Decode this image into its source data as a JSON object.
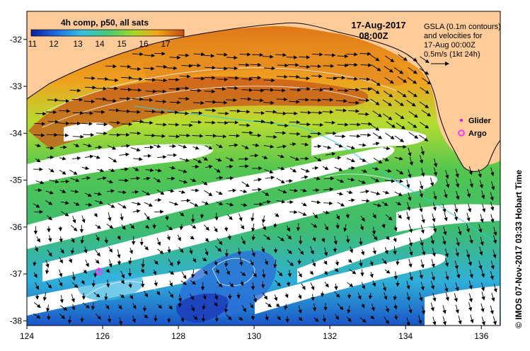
{
  "colorbar": {
    "title": "4h comp, p50, all sats",
    "ticks": [
      "11",
      "12",
      "13",
      "14",
      "15",
      "16",
      "17"
    ],
    "colors": [
      "#0a1f9e",
      "#1e6fe0",
      "#36c0e0",
      "#46c873",
      "#a3d92a",
      "#f5a21a",
      "#c44a0f"
    ]
  },
  "header": {
    "date": "17-Aug-2017",
    "time": "08:00Z"
  },
  "info": {
    "line1": "GSLA (0.1m contours)",
    "line2": "and velocities for",
    "line3": "17-Aug 00:00Z",
    "line4": "0.5m/s (1kt 24h)"
  },
  "legend": {
    "glider": "Glider",
    "argo": "Argo"
  },
  "credit": "© IMOS 07-Nov-2017 03:33 Hobart Time",
  "axes": {
    "x_ticks": [
      "124",
      "126",
      "128",
      "130",
      "132",
      "134",
      "136"
    ],
    "y_ticks": [
      "-32",
      "-33",
      "-34",
      "-35",
      "-36",
      "-37",
      "-38"
    ]
  },
  "colors": {
    "land": "#ffcc99",
    "nodata": "#ffffff",
    "arrow": "#000000",
    "glider": "#cc33cc",
    "argo": "#ff33ff"
  },
  "map_data": {
    "lon_range": [
      124,
      136.5
    ],
    "lat_range": [
      -38.1,
      -31.4
    ],
    "glider": {
      "lon": 125.9,
      "lat": -36.9
    },
    "argo": {
      "lon": 125.9,
      "lat": -36.95
    }
  }
}
